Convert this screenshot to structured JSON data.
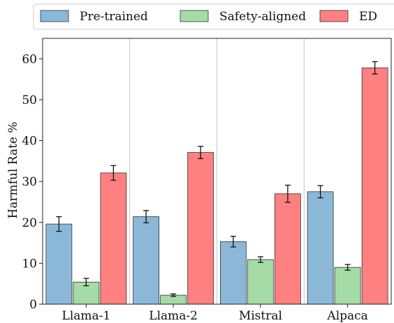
{
  "chart_data": {
    "type": "bar",
    "categories": [
      "Llama-1",
      "Llama-2",
      "Mistral",
      "Alpaca"
    ],
    "series": [
      {
        "name": "Pre-trained",
        "color": "#8bb8d9",
        "values": [
          19.6,
          21.4,
          15.3,
          27.5
        ],
        "errors": [
          1.8,
          1.5,
          1.3,
          1.5
        ]
      },
      {
        "name": "Safety-aligned",
        "color": "#a5dba5",
        "values": [
          5.4,
          2.2,
          10.9,
          9.0
        ],
        "errors": [
          0.9,
          0.3,
          0.7,
          0.7
        ]
      },
      {
        "name": "ED",
        "color": "#ff8080",
        "values": [
          32.1,
          37.1,
          27.0,
          57.8
        ],
        "errors": [
          1.8,
          1.5,
          2.1,
          1.5
        ]
      }
    ],
    "ylabel": "Harmful Rate %",
    "xlabel": "",
    "ylim": [
      0,
      65
    ],
    "yticks": [
      0,
      10,
      20,
      30,
      40,
      50,
      60
    ],
    "grid": "vertical separators between groups",
    "legend": "top, horizontal"
  }
}
